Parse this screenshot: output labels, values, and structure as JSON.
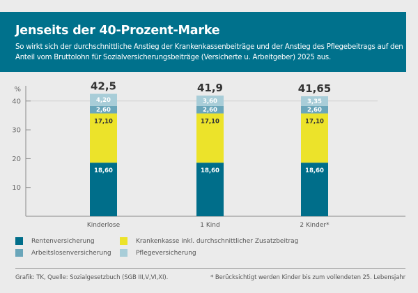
{
  "header": {
    "title": "Jenseits der 40-Prozent-Marke",
    "subtitle": "So wirkt sich der durchschnittliche Anstieg der Krankenkassenbeiträge und der Anstieg des Pflegebeitrags auf den Anteil vom Bruttolohn für Sozialversicherungsbeiträge (Versicherte u. Arbeitgeber) 2025 aus."
  },
  "colors": {
    "header_bg": "#00718c",
    "rentenversicherung": "#006e8a",
    "krankenkasse": "#ece32a",
    "arbeitslosenversicherung": "#6aa6ba",
    "pflegeversicherung": "#a8cdd8"
  },
  "chart_data": {
    "type": "bar",
    "stacked": true,
    "title": "Jenseits der 40-Prozent-Marke",
    "xlabel": "",
    "ylabel": "%",
    "ylim": [
      0,
      42
    ],
    "yticks": [
      10,
      20,
      30,
      40
    ],
    "grid": "horizontal line at 40 only",
    "categories": [
      "Kinderlose",
      "1 Kind",
      "2 Kinder*"
    ],
    "totals": [
      "42,5",
      "41,9",
      "41,65"
    ],
    "series": [
      {
        "name": "Rentenversicherung",
        "key": "rentenversicherung",
        "values": [
          18.6,
          18.6,
          18.6
        ],
        "labels": [
          "18,60",
          "18,60",
          "18,60"
        ],
        "label_color": "#ffffff"
      },
      {
        "name": "Krankenkasse inkl. durchschnittlicher Zusatzbeitrag",
        "key": "krankenkasse",
        "values": [
          17.1,
          17.1,
          17.1
        ],
        "labels": [
          "17,10",
          "17,10",
          "17,10"
        ],
        "label_color": "#333333"
      },
      {
        "name": "Arbeitslosenversicherung",
        "key": "arbeitslosenversicherung",
        "values": [
          2.6,
          2.6,
          2.6
        ],
        "labels": [
          "2,60",
          "2,60",
          "2,60"
        ],
        "label_color": "#ffffff"
      },
      {
        "name": "Pflegeversicherung",
        "key": "pflegeversicherung",
        "values": [
          4.2,
          3.6,
          3.35
        ],
        "labels": [
          "4,20",
          "3,60",
          "3,35"
        ],
        "label_color": "#ffffff"
      }
    ],
    "legend_position": "bottom"
  },
  "legend": {
    "items": [
      {
        "label": "Rentenversicherung",
        "key": "rentenversicherung"
      },
      {
        "label": "Arbeitslosenversicherung",
        "key": "arbeitslosenversicherung"
      },
      {
        "label": "Krankenkasse inkl. durchschnittlicher Zusatzbeitrag",
        "key": "krankenkasse"
      },
      {
        "label": "Pflegeversicherung",
        "key": "pflegeversicherung"
      }
    ]
  },
  "footer": {
    "source": "Grafik: TK, Quelle: Sozialgesetzbuch (SGB III,V,VI,XI).",
    "note": "* Berücksichtigt werden Kinder bis zum vollendeten 25. Lebensjahr"
  }
}
